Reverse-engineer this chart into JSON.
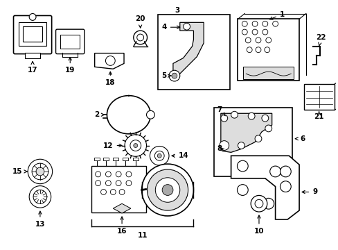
{
  "bg_color": "#ffffff",
  "line_color": "#000000",
  "gray": "#aaaaaa",
  "lightgray": "#dddddd"
}
